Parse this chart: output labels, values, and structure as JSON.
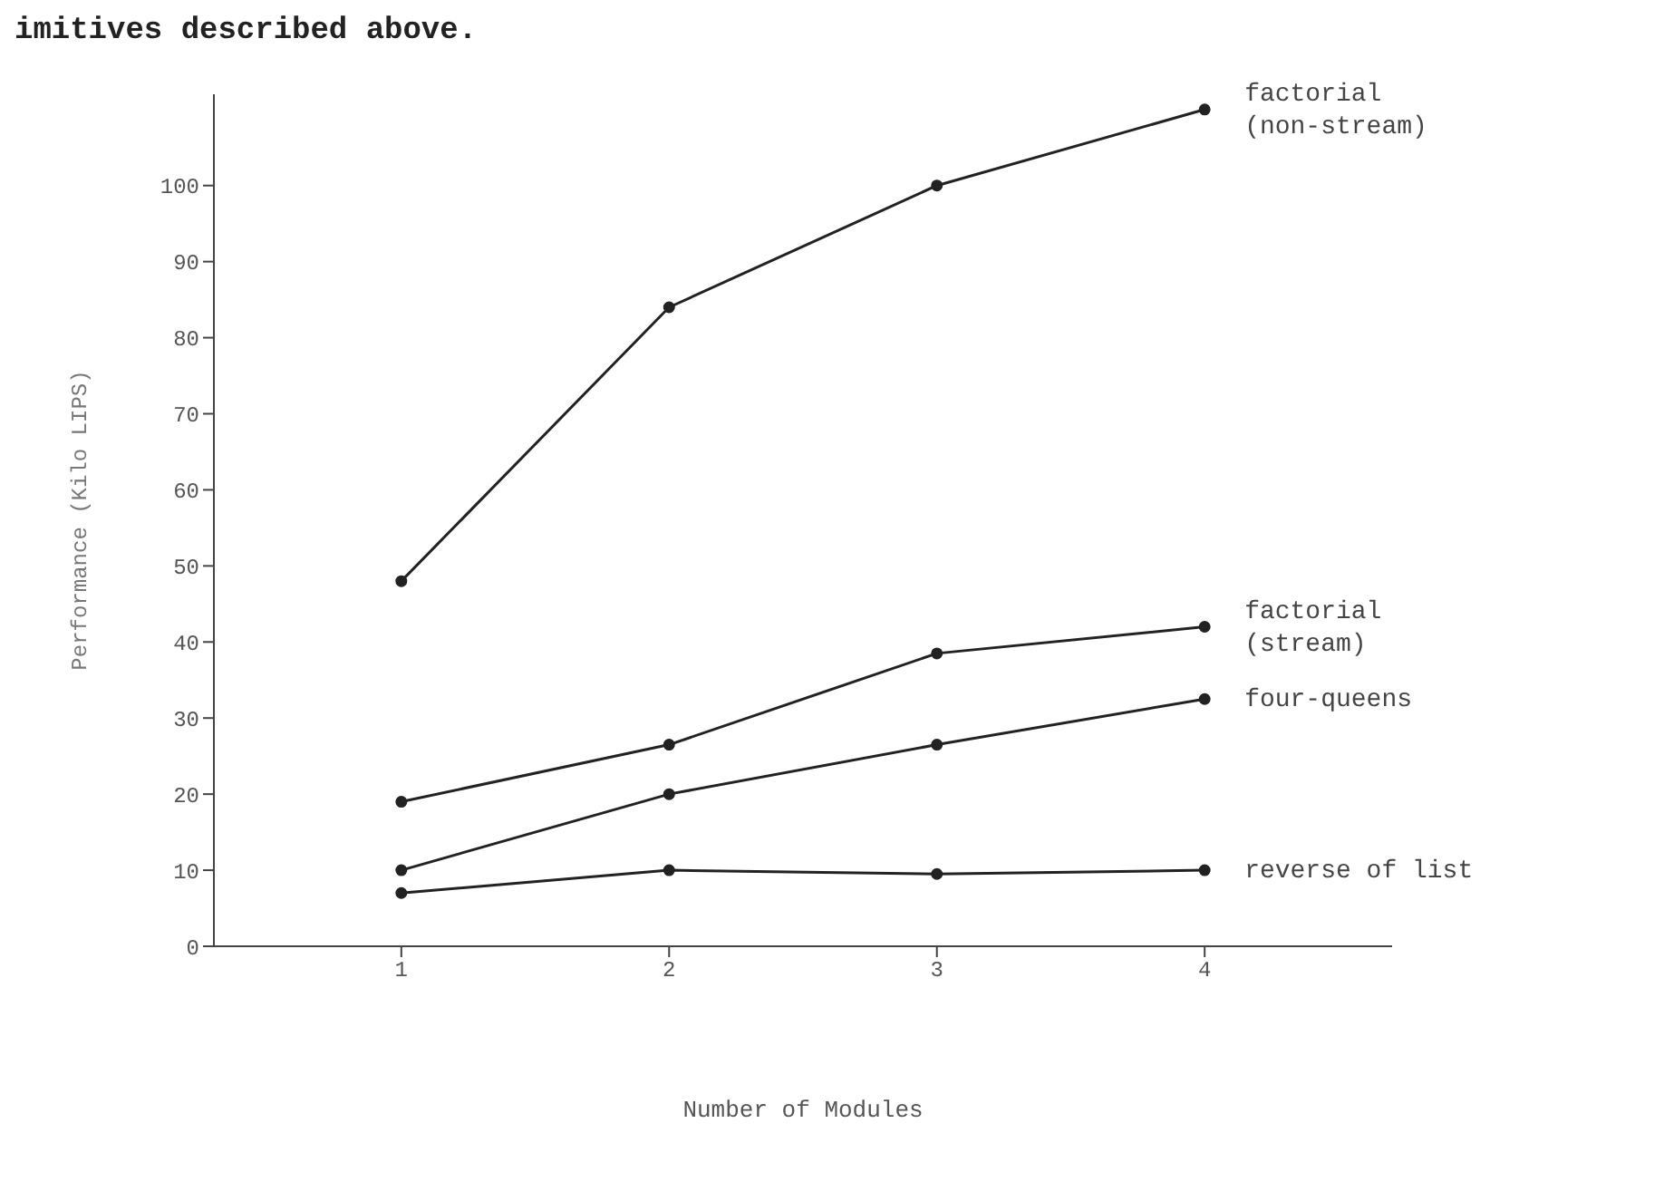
{
  "chart_data": {
    "type": "line",
    "annotations": [
      "imitives described above."
    ],
    "xlabel": "Number of Modules",
    "ylabel": "Performance (Kilo LIPS)",
    "x": [
      1,
      2,
      3,
      4
    ],
    "xlim": [
      0.3,
      4.7
    ],
    "xticks": [
      1,
      2,
      3,
      4
    ],
    "ylim": [
      0,
      112
    ],
    "yticks": [
      0,
      10,
      20,
      30,
      40,
      50,
      60,
      70,
      80,
      90,
      100
    ],
    "grid": false,
    "legend": false,
    "marker": "circle",
    "line_style": "solid",
    "series": [
      {
        "name": "factorial\n(non-stream)",
        "color": "#222222",
        "values": [
          48,
          84,
          100,
          110
        ]
      },
      {
        "name": "factorial\n(stream)",
        "color": "#222222",
        "values": [
          19,
          26.5,
          38.5,
          42
        ]
      },
      {
        "name": "four-queens",
        "color": "#222222",
        "values": [
          10,
          20,
          26.5,
          32.5
        ]
      },
      {
        "name": "reverse of list",
        "color": "#222222",
        "values": [
          7,
          10,
          9.5,
          10
        ]
      }
    ]
  }
}
